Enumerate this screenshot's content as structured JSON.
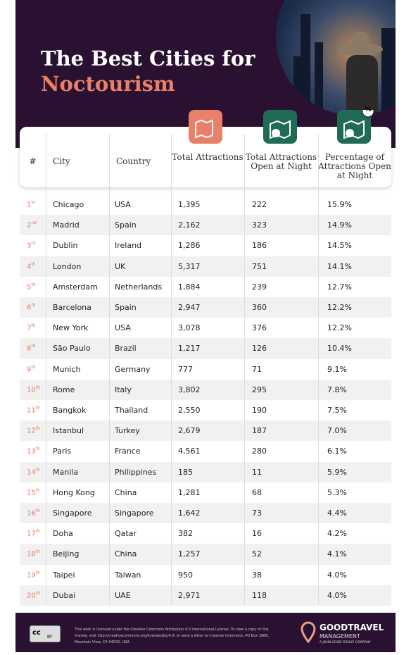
{
  "header": {
    "title_line1": "The Best Cities for",
    "title_line2": "Noctourism"
  },
  "table": {
    "columns": [
      "#",
      "City",
      "Country",
      "Total Attractions",
      "Total Attractions Open at Night",
      "Percentage of Attractions Open at Night"
    ],
    "icon_badge": "%",
    "rows": [
      [
        "1",
        "st",
        "Chicago",
        "USA",
        "1,395",
        "222",
        "15.9%"
      ],
      [
        "2",
        "nd",
        "Madrid",
        "Spain",
        "2,162",
        "323",
        "14.9%"
      ],
      [
        "3",
        "rd",
        "Dublin",
        "Ireland",
        "1,286",
        "186",
        "14.5%"
      ],
      [
        "4",
        "th",
        "London",
        "UK",
        "5,317",
        "751",
        "14.1%"
      ],
      [
        "5",
        "th",
        "Amsterdam",
        "Netherlands",
        "1,884",
        "239",
        "12.7%"
      ],
      [
        "6",
        "th",
        "Barcelona",
        "Spain",
        "2,947",
        "360",
        "12.2%"
      ],
      [
        "7",
        "th",
        "New York",
        "USA",
        "3,078",
        "376",
        "12.2%"
      ],
      [
        "8",
        "th",
        "São Paulo",
        "Brazil",
        "1,217",
        "126",
        "10.4%"
      ],
      [
        "9",
        "th",
        "Munich",
        "Germany",
        "777",
        "71",
        "9.1%"
      ],
      [
        "10",
        "th",
        "Rome",
        "Italy",
        "3,802",
        "295",
        "7.8%"
      ],
      [
        "11",
        "th",
        "Bangkok",
        "Thailand",
        "2,550",
        "190",
        "7.5%"
      ],
      [
        "12",
        "th",
        "Istanbul",
        "Turkey",
        "2,679",
        "187",
        "7.0%"
      ],
      [
        "13",
        "th",
        "Paris",
        "France",
        "4,561",
        "280",
        "6.1%"
      ],
      [
        "14",
        "th",
        "Manila",
        "Philippines",
        "185",
        "11",
        "5.9%"
      ],
      [
        "15",
        "th",
        "Hong Kong",
        "China",
        "1,281",
        "68",
        "5.3%"
      ],
      [
        "16",
        "th",
        "Singapore",
        "Singapore",
        "1,642",
        "73",
        "4.4%"
      ],
      [
        "17",
        "th",
        "Doha",
        "Qatar",
        "382",
        "16",
        "4.2%"
      ],
      [
        "18",
        "th",
        "Beijing",
        "China",
        "1,257",
        "52",
        "4.1%"
      ],
      [
        "19",
        "th",
        "Taipei",
        "Taiwan",
        "950",
        "38",
        "4.0%"
      ],
      [
        "20",
        "th",
        "Dubai",
        "UAE",
        "2,971",
        "118",
        "4.0%"
      ]
    ]
  },
  "footer": {
    "cc": "cc",
    "by": "BY",
    "license": "This work is licensed under the Creative Commons Attribution 4.0 International License. To view a copy of this license, visit http://creativecommons.org/licenses/by/4.0/ or send a letter to Creative Commons, PO Box 1866, Mountain View, CA 94042, USA.",
    "brand": "GOODTRAVEL",
    "brand_sub": "MANAGEMENT",
    "tagline": "A JOHN GOOD GROUP COMPANY"
  }
}
